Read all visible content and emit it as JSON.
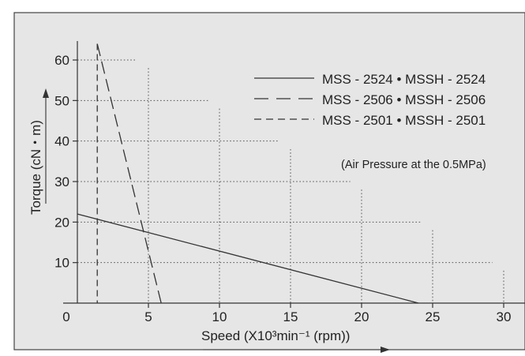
{
  "chart_data": {
    "type": "line",
    "xlabel": "Speed (X10³min⁻¹ (rpm))",
    "ylabel": "Torque (cN・m)",
    "xlim": [
      0,
      30
    ],
    "ylim": [
      0,
      60
    ],
    "x_ticks": [
      0,
      5,
      10,
      15,
      20,
      25,
      30
    ],
    "x_tick_labels": [
      "0",
      "5",
      "10",
      "15",
      "20",
      "25",
      "30"
    ],
    "y_ticks": [
      10,
      20,
      30,
      40,
      50,
      60
    ],
    "y_tick_labels": [
      "10",
      "20",
      "30",
      "40",
      "50",
      "60"
    ],
    "grid": "dotted staircase",
    "legend_position": "top-right",
    "note": "(Air Pressure at the 0.5MPa)",
    "series": [
      {
        "name": "MSS - 2524 • MSSH - 2524",
        "style": "solid",
        "x": [
          0,
          24
        ],
        "y": [
          22,
          0
        ]
      },
      {
        "name": "MSS - 2506 • MSSH - 2506",
        "style": "long-dash",
        "x": [
          1.4,
          5.9
        ],
        "y": [
          64,
          0
        ]
      },
      {
        "name": "MSS - 2501 • MSSH - 2501",
        "style": "short-dash",
        "x": [
          1.4,
          1.4
        ],
        "y": [
          64,
          0
        ]
      }
    ],
    "colors": {
      "background": "#e6e6e6",
      "line": "#333333",
      "grid": "#555555",
      "border": "#444444"
    }
  }
}
